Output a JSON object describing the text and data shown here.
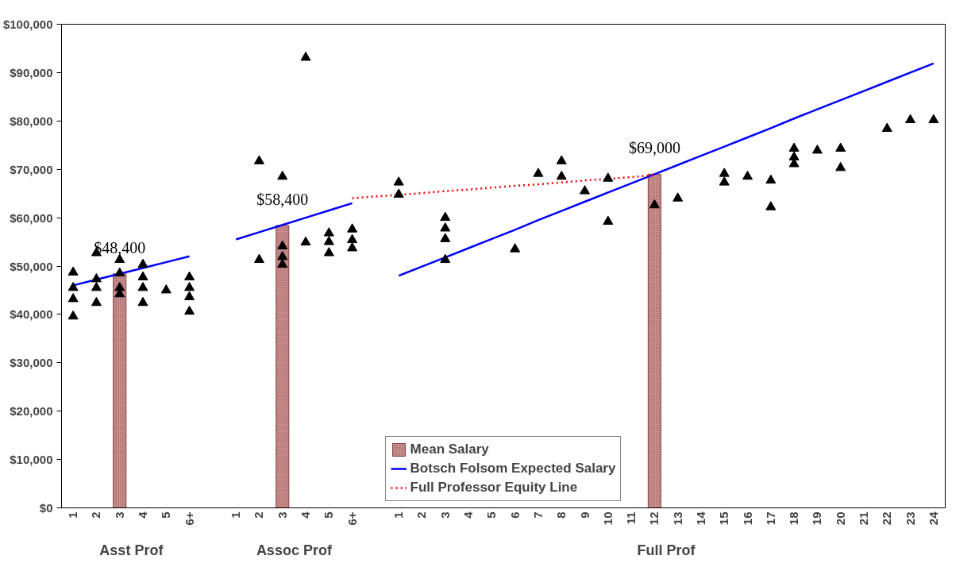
{
  "chart_data": {
    "type": "bar",
    "categories": [
      "1",
      "2",
      "3",
      "4",
      "5",
      "6+",
      null,
      "1",
      "2",
      "3",
      "4",
      "5",
      "6+",
      null,
      "1",
      "2",
      "3",
      "4",
      "5",
      "6",
      "7",
      "8",
      "9",
      "10",
      "11",
      "12",
      "13",
      "14",
      "15",
      "16",
      "17",
      "18",
      "19",
      "20",
      "21",
      "22",
      "23",
      "24"
    ],
    "annotations": [
      "Asst Prof",
      "Assoc Prof",
      "Full Prof"
    ],
    "ylim": [
      0,
      100000
    ],
    "yticks": [
      {
        "value": 0,
        "label": "$0"
      },
      {
        "value": 10000,
        "label": "$10,000"
      },
      {
        "value": 20000,
        "label": "$20,000"
      },
      {
        "value": 30000,
        "label": "$30,000"
      },
      {
        "value": 40000,
        "label": "$40,000"
      },
      {
        "value": 50000,
        "label": "$50,000"
      },
      {
        "value": 60000,
        "label": "$60,000"
      },
      {
        "value": 70000,
        "label": "$70,000"
      },
      {
        "value": 80000,
        "label": "$80,000"
      },
      {
        "value": 90000,
        "label": "$90,000"
      },
      {
        "value": 100000,
        "label": "$100,000"
      }
    ],
    "legend": "bottom",
    "series": [
      {
        "name": "Mean Salary",
        "color": "#c89090",
        "values": [
          null,
          null,
          48400,
          null,
          null,
          null,
          null,
          null,
          null,
          58400,
          null,
          null,
          null,
          null,
          null,
          null,
          null,
          null,
          null,
          null,
          null,
          null,
          null,
          null,
          null,
          69000,
          null,
          null,
          null,
          null,
          null,
          null,
          null,
          null,
          null,
          null,
          null,
          null
        ],
        "value_labels": [
          null,
          null,
          "$48,400",
          null,
          null,
          null,
          null,
          null,
          null,
          "$58,400",
          null,
          null,
          null,
          null,
          null,
          null,
          null,
          null,
          null,
          null,
          null,
          null,
          null,
          null,
          null,
          "$69,000",
          null,
          null,
          null,
          null,
          null,
          null,
          null,
          null,
          null,
          null,
          null,
          null
        ]
      },
      {
        "type": "line",
        "name": "Botsch Folsom Expected Salary",
        "color": "#0000ff",
        "line_style": "solid",
        "values": [
          46000,
          47200,
          48400,
          49600,
          50800,
          52000,
          null,
          55500,
          57000,
          58500,
          60000,
          61500,
          63000,
          null,
          48000,
          49900,
          51800,
          53700,
          55600,
          57500,
          59500,
          61400,
          63300,
          65200,
          67100,
          69000,
          70900,
          72800,
          74700,
          76600,
          78500,
          80500,
          82400,
          84300,
          86200,
          88100,
          90000,
          91900
        ]
      },
      {
        "type": "line",
        "name": "Full Professor Equity Line",
        "color": "#ff0000",
        "line_style": "dotted",
        "values": [
          null,
          null,
          null,
          null,
          null,
          null,
          null,
          null,
          null,
          null,
          null,
          null,
          64000,
          64400,
          64700,
          65100,
          65500,
          65800,
          66200,
          66600,
          66900,
          67300,
          67700,
          68000,
          68400,
          68800,
          null,
          null,
          null,
          null,
          null,
          null,
          null,
          null,
          null,
          null,
          null,
          null
        ]
      },
      {
        "type": "scatter",
        "color": "#000000",
        "marker": "triangle",
        "values": [
          48700,
          52700,
          51300,
          50300,
          45000,
          47700,
          null,
          null,
          71700,
          68500,
          93100,
          56800,
          57600,
          null,
          67300,
          null,
          60000,
          null,
          null,
          53500,
          69100,
          71700,
          65500,
          68100,
          null,
          62600,
          64000,
          null,
          69100,
          68500,
          67700,
          74300,
          73900,
          74300,
          null,
          78400,
          80200,
          80200
        ]
      },
      {
        "type": "scatter",
        "color": "#000000",
        "marker": "triangle",
        "values": [
          45500,
          47300,
          48500,
          47700,
          null,
          45500,
          null,
          null,
          51300,
          54100,
          54900,
          55000,
          55400,
          null,
          64800,
          null,
          57800,
          null,
          null,
          null,
          null,
          68500,
          null,
          59200,
          null,
          null,
          null,
          null,
          67300,
          null,
          62200,
          72500,
          null,
          70300,
          null,
          null,
          null,
          null
        ]
      },
      {
        "type": "scatter",
        "color": "#000000",
        "marker": "triangle",
        "values": [
          43200,
          45500,
          45500,
          45500,
          null,
          43600,
          null,
          null,
          null,
          51900,
          null,
          52700,
          53700,
          null,
          null,
          null,
          55600,
          null,
          null,
          null,
          null,
          null,
          null,
          null,
          null,
          null,
          null,
          null,
          null,
          null,
          null,
          71100,
          null,
          null,
          null,
          null,
          null,
          null
        ]
      },
      {
        "type": "scatter",
        "color": "#000000",
        "marker": "triangle",
        "values": [
          39600,
          42400,
          44200,
          42400,
          null,
          40600,
          null,
          null,
          null,
          50300,
          null,
          null,
          null,
          null,
          null,
          null,
          51300,
          null,
          null,
          null,
          null,
          null,
          null,
          null,
          null,
          null,
          null,
          null,
          null,
          null,
          null,
          null,
          null,
          null,
          null,
          null,
          null,
          null
        ]
      }
    ]
  }
}
